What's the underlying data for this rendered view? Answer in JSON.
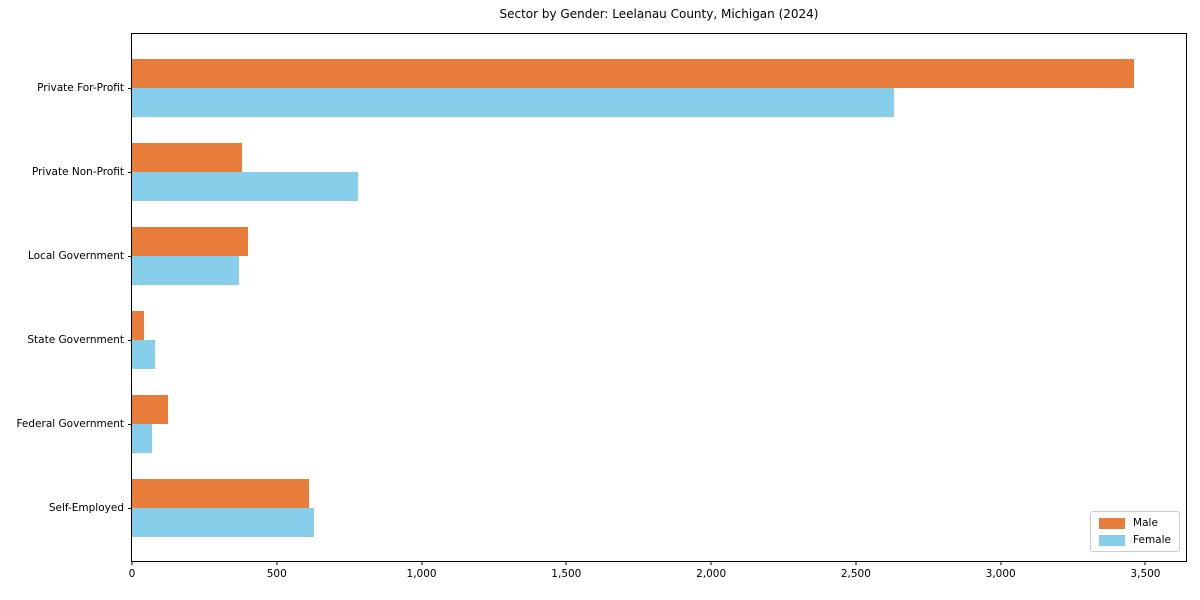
{
  "title": "Sector by Gender: Leelanau County, Michigan (2024)",
  "chart_data": {
    "type": "bar",
    "orientation": "horizontal",
    "title": "Sector by Gender: Leelanau County, Michigan (2024)",
    "categories": [
      "Private For-Profit",
      "Private Non-Profit",
      "Local Government",
      "State Government",
      "Federal Government",
      "Self-Employed"
    ],
    "series": [
      {
        "name": "Male",
        "color": "#e87d3b",
        "values": [
          3460,
          380,
          400,
          40,
          125,
          610
        ]
      },
      {
        "name": "Female",
        "color": "#87ceeb",
        "values": [
          2630,
          780,
          370,
          80,
          70,
          630
        ]
      }
    ],
    "xlabel": "",
    "ylabel": "",
    "xlim": [
      0,
      3640
    ],
    "xticks": [
      0,
      500,
      1000,
      1500,
      2000,
      2500,
      3000,
      3500
    ],
    "xtick_labels": [
      "0",
      "500",
      "1,000",
      "1,500",
      "2,000",
      "2,500",
      "3,000",
      "3,500"
    ],
    "grid": false,
    "legend": {
      "position": "lower right",
      "entries": [
        "Male",
        "Female"
      ]
    },
    "colors": {
      "male": "#e87d3b",
      "female": "#87ceeb",
      "spine": "#000000",
      "background": "#ffffff"
    }
  }
}
